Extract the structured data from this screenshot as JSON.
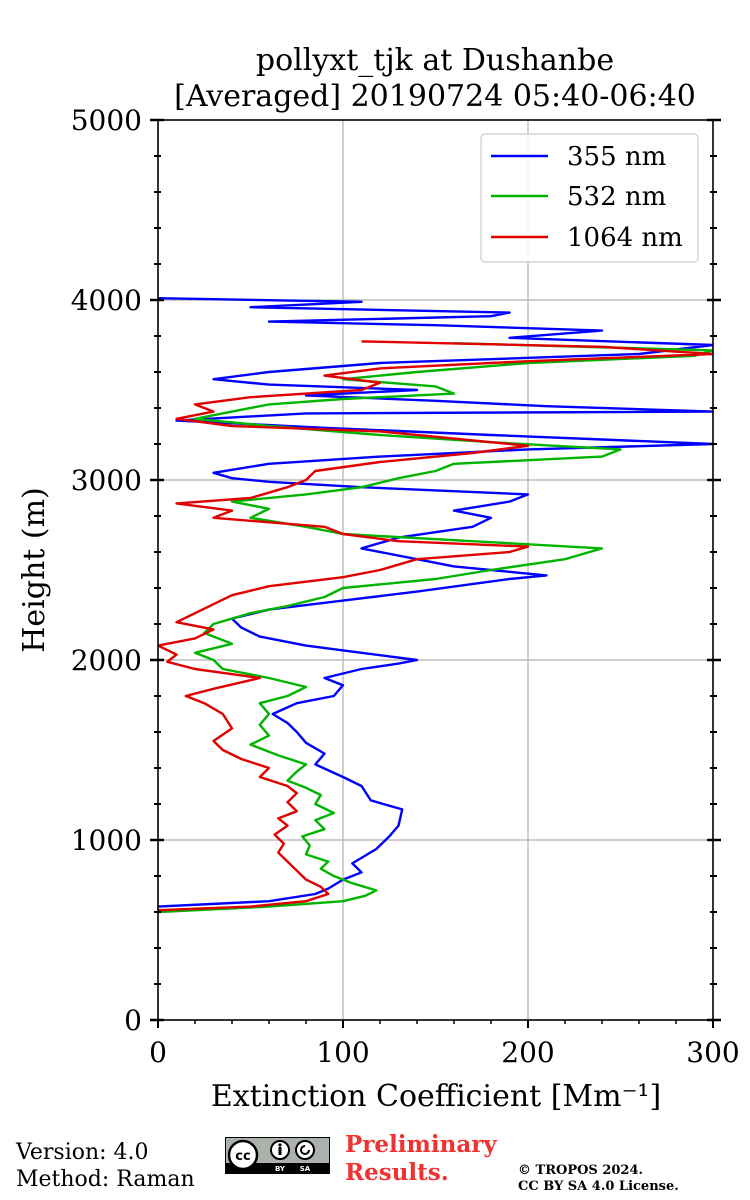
{
  "chart_data": {
    "type": "line",
    "title": "pollyxt_tjk at Dushanbe",
    "subtitle": "[Averaged] 20190724 05:40-06:40",
    "xlabel": "Extinction Coefficient [Mm⁻¹]",
    "ylabel": "Height (m)",
    "xlim": [
      0,
      300
    ],
    "ylim": [
      0,
      5000
    ],
    "xticks": [
      0,
      100,
      200,
      300
    ],
    "yticks": [
      0,
      1000,
      2000,
      3000,
      4000,
      5000
    ],
    "grid": true,
    "legend_position": "top-right",
    "series": [
      {
        "name": "355 nm",
        "color": "#0000ff",
        "points": [
          [
            0,
            630
          ],
          [
            60,
            660
          ],
          [
            85,
            700
          ],
          [
            92,
            730
          ],
          [
            100,
            780
          ],
          [
            110,
            820
          ],
          [
            105,
            870
          ],
          [
            118,
            950
          ],
          [
            125,
            1020
          ],
          [
            130,
            1080
          ],
          [
            132,
            1170
          ],
          [
            115,
            1220
          ],
          [
            110,
            1300
          ],
          [
            100,
            1350
          ],
          [
            85,
            1420
          ],
          [
            90,
            1480
          ],
          [
            80,
            1540
          ],
          [
            75,
            1600
          ],
          [
            70,
            1650
          ],
          [
            62,
            1700
          ],
          [
            75,
            1760
          ],
          [
            95,
            1800
          ],
          [
            100,
            1860
          ],
          [
            90,
            1900
          ],
          [
            110,
            1950
          ],
          [
            130,
            1980
          ],
          [
            140,
            2000
          ],
          [
            110,
            2040
          ],
          [
            80,
            2080
          ],
          [
            55,
            2130
          ],
          [
            45,
            2180
          ],
          [
            40,
            2230
          ],
          [
            60,
            2280
          ],
          [
            100,
            2330
          ],
          [
            140,
            2380
          ],
          [
            190,
            2450
          ],
          [
            210,
            2470
          ],
          [
            160,
            2520
          ],
          [
            140,
            2560
          ],
          [
            110,
            2620
          ],
          [
            130,
            2680
          ],
          [
            170,
            2740
          ],
          [
            180,
            2790
          ],
          [
            160,
            2830
          ],
          [
            190,
            2880
          ],
          [
            200,
            2920
          ],
          [
            110,
            2960
          ],
          [
            60,
            2990
          ],
          [
            40,
            3010
          ],
          [
            30,
            3040
          ],
          [
            60,
            3090
          ],
          [
            120,
            3130
          ],
          [
            200,
            3170
          ],
          [
            300,
            3200
          ],
          [
            180,
            3250
          ],
          [
            90,
            3290
          ],
          [
            10,
            3330
          ],
          [
            80,
            3370
          ],
          [
            300,
            3380
          ],
          [
            210,
            3410
          ],
          [
            150,
            3440
          ],
          [
            80,
            3470
          ],
          [
            140,
            3500
          ],
          [
            60,
            3530
          ],
          [
            30,
            3560
          ],
          [
            60,
            3600
          ],
          [
            120,
            3650
          ],
          [
            260,
            3700
          ],
          [
            300,
            3750
          ],
          [
            190,
            3790
          ],
          [
            240,
            3830
          ],
          [
            150,
            3860
          ],
          [
            60,
            3880
          ],
          [
            180,
            3910
          ],
          [
            190,
            3930
          ],
          [
            50,
            3960
          ],
          [
            110,
            3990
          ],
          [
            0,
            4010
          ]
        ]
      },
      {
        "name": "532 nm",
        "color": "#00b400",
        "points": [
          [
            0,
            600
          ],
          [
            60,
            630
          ],
          [
            100,
            660
          ],
          [
            112,
            690
          ],
          [
            118,
            720
          ],
          [
            105,
            760
          ],
          [
            95,
            800
          ],
          [
            88,
            840
          ],
          [
            92,
            880
          ],
          [
            80,
            920
          ],
          [
            82,
            970
          ],
          [
            78,
            1020
          ],
          [
            90,
            1060
          ],
          [
            85,
            1110
          ],
          [
            95,
            1150
          ],
          [
            85,
            1200
          ],
          [
            88,
            1250
          ],
          [
            80,
            1290
          ],
          [
            70,
            1330
          ],
          [
            75,
            1380
          ],
          [
            80,
            1420
          ],
          [
            65,
            1470
          ],
          [
            50,
            1530
          ],
          [
            60,
            1580
          ],
          [
            55,
            1640
          ],
          [
            60,
            1700
          ],
          [
            55,
            1760
          ],
          [
            70,
            1800
          ],
          [
            80,
            1850
          ],
          [
            60,
            1900
          ],
          [
            35,
            1950
          ],
          [
            30,
            2000
          ],
          [
            20,
            2040
          ],
          [
            40,
            2090
          ],
          [
            25,
            2150
          ],
          [
            30,
            2200
          ],
          [
            50,
            2260
          ],
          [
            70,
            2300
          ],
          [
            90,
            2350
          ],
          [
            100,
            2400
          ],
          [
            150,
            2450
          ],
          [
            180,
            2500
          ],
          [
            220,
            2560
          ],
          [
            240,
            2620
          ],
          [
            170,
            2660
          ],
          [
            100,
            2700
          ],
          [
            80,
            2740
          ],
          [
            50,
            2790
          ],
          [
            60,
            2840
          ],
          [
            40,
            2880
          ],
          [
            80,
            2920
          ],
          [
            110,
            2960
          ],
          [
            130,
            3010
          ],
          [
            150,
            3050
          ],
          [
            160,
            3090
          ],
          [
            240,
            3130
          ],
          [
            250,
            3170
          ],
          [
            180,
            3210
          ],
          [
            120,
            3250
          ],
          [
            60,
            3300
          ],
          [
            20,
            3340
          ],
          [
            40,
            3380
          ],
          [
            60,
            3420
          ],
          [
            100,
            3450
          ],
          [
            160,
            3480
          ],
          [
            150,
            3520
          ],
          [
            100,
            3560
          ],
          [
            140,
            3600
          ],
          [
            200,
            3650
          ],
          [
            290,
            3690
          ],
          [
            300,
            3720
          ],
          [
            160,
            3760
          ]
        ]
      },
      {
        "name": "1064 nm",
        "color": "#e10000",
        "points": [
          [
            0,
            610
          ],
          [
            50,
            630
          ],
          [
            80,
            660
          ],
          [
            92,
            700
          ],
          [
            88,
            740
          ],
          [
            80,
            780
          ],
          [
            75,
            830
          ],
          [
            70,
            880
          ],
          [
            65,
            930
          ],
          [
            68,
            980
          ],
          [
            63,
            1030
          ],
          [
            70,
            1080
          ],
          [
            65,
            1120
          ],
          [
            75,
            1160
          ],
          [
            70,
            1210
          ],
          [
            75,
            1260
          ],
          [
            70,
            1300
          ],
          [
            55,
            1350
          ],
          [
            60,
            1400
          ],
          [
            45,
            1450
          ],
          [
            35,
            1500
          ],
          [
            30,
            1550
          ],
          [
            40,
            1620
          ],
          [
            35,
            1700
          ],
          [
            25,
            1760
          ],
          [
            15,
            1800
          ],
          [
            30,
            1840
          ],
          [
            55,
            1900
          ],
          [
            20,
            1950
          ],
          [
            5,
            1990
          ],
          [
            10,
            2030
          ],
          [
            0,
            2080
          ],
          [
            20,
            2120
          ],
          [
            30,
            2170
          ],
          [
            10,
            2210
          ],
          [
            20,
            2260
          ],
          [
            30,
            2310
          ],
          [
            40,
            2360
          ],
          [
            60,
            2410
          ],
          [
            100,
            2460
          ],
          [
            120,
            2500
          ],
          [
            140,
            2560
          ],
          [
            190,
            2600
          ],
          [
            200,
            2630
          ],
          [
            130,
            2660
          ],
          [
            100,
            2700
          ],
          [
            90,
            2740
          ],
          [
            30,
            2790
          ],
          [
            40,
            2830
          ],
          [
            10,
            2870
          ],
          [
            50,
            2900
          ],
          [
            70,
            2960
          ],
          [
            80,
            3000
          ],
          [
            85,
            3050
          ],
          [
            120,
            3100
          ],
          [
            170,
            3150
          ],
          [
            200,
            3190
          ],
          [
            160,
            3230
          ],
          [
            120,
            3270
          ],
          [
            40,
            3300
          ],
          [
            10,
            3340
          ],
          [
            30,
            3380
          ],
          [
            20,
            3420
          ],
          [
            50,
            3460
          ],
          [
            110,
            3500
          ],
          [
            120,
            3540
          ],
          [
            90,
            3580
          ],
          [
            120,
            3620
          ],
          [
            200,
            3660
          ],
          [
            300,
            3700
          ],
          [
            240,
            3740
          ],
          [
            110,
            3770
          ]
        ]
      }
    ]
  },
  "footer": {
    "version": "Version: 4.0",
    "method": "Method: Raman",
    "preliminary_line1": "Preliminary",
    "preliminary_line2": "Results.",
    "copyright_line1": "© TROPOS 2024.",
    "copyright_line2": "CC BY SA 4.0 License.",
    "license_badge": "cc-by-sa-badge"
  }
}
